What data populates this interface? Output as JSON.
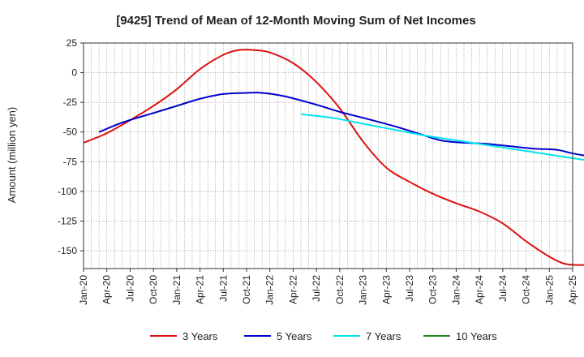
{
  "chart_data": {
    "type": "line",
    "title": "[9425]  Trend of Mean of 12-Month Moving Sum of Net Incomes",
    "xlabel": "",
    "ylabel": "Amount (million yen)",
    "ylim": [
      -165,
      25
    ],
    "yticks": [
      25,
      0,
      -25,
      -50,
      -75,
      -100,
      -125,
      -150
    ],
    "xticks": [
      "Jan-20",
      "Apr-20",
      "Jul-20",
      "Oct-20",
      "Jan-21",
      "Apr-21",
      "Jul-21",
      "Oct-21",
      "Jan-22",
      "Apr-22",
      "Jul-22",
      "Oct-22",
      "Jan-23",
      "Apr-23",
      "Jul-23",
      "Oct-23",
      "Jan-24",
      "Apr-24",
      "Jul-24",
      "Oct-24",
      "Jan-25",
      "Apr-25"
    ],
    "grid": true,
    "legend_position": "bottom",
    "series": [
      {
        "name": "3 Years",
        "color": "#dd1111",
        "points": [
          [
            0,
            -59
          ],
          [
            3,
            -51
          ],
          [
            6,
            -40
          ],
          [
            9,
            -28
          ],
          [
            12,
            -14
          ],
          [
            15,
            3
          ],
          [
            18,
            15
          ],
          [
            20,
            19
          ],
          [
            22,
            19
          ],
          [
            24,
            17
          ],
          [
            27,
            8
          ],
          [
            30,
            -8
          ],
          [
            33,
            -30
          ],
          [
            36,
            -58
          ],
          [
            39,
            -80
          ],
          [
            42,
            -92
          ],
          [
            45,
            -102
          ],
          [
            48,
            -110
          ],
          [
            51,
            -117
          ],
          [
            54,
            -127
          ],
          [
            57,
            -142
          ],
          [
            60,
            -155
          ],
          [
            62,
            -161
          ],
          [
            64,
            -162
          ],
          [
            66,
            -161
          ],
          [
            67,
            -160
          ]
        ]
      },
      {
        "name": "5 Years",
        "color": "#0000cc",
        "points": [
          [
            2,
            -50
          ],
          [
            5,
            -42
          ],
          [
            9,
            -34
          ],
          [
            12,
            -28
          ],
          [
            15,
            -22
          ],
          [
            18,
            -18
          ],
          [
            21,
            -17
          ],
          [
            23,
            -17
          ],
          [
            26,
            -20
          ],
          [
            30,
            -27
          ],
          [
            33,
            -33
          ],
          [
            36,
            -38
          ],
          [
            40,
            -45
          ],
          [
            43,
            -51
          ],
          [
            46,
            -57
          ],
          [
            49,
            -59
          ],
          [
            52,
            -60
          ],
          [
            55,
            -62
          ],
          [
            58,
            -64
          ],
          [
            61,
            -65
          ],
          [
            63,
            -68
          ],
          [
            67,
            -73
          ],
          [
            70,
            -79
          ],
          [
            74,
            -84
          ],
          [
            76,
            -88
          ]
        ]
      },
      {
        "name": "7 Years",
        "color": "#00e5ee",
        "points": [
          [
            28,
            -35
          ],
          [
            32,
            -38
          ],
          [
            36,
            -43
          ],
          [
            40,
            -48
          ],
          [
            44,
            -53
          ],
          [
            48,
            -57
          ],
          [
            52,
            -61
          ],
          [
            56,
            -65
          ],
          [
            60,
            -69
          ],
          [
            64,
            -73
          ],
          [
            68,
            -76
          ],
          [
            72,
            -76
          ],
          [
            75,
            -74
          ],
          [
            76,
            -73
          ]
        ]
      },
      {
        "name": "10 Years",
        "color": "#228b22",
        "points": []
      }
    ]
  }
}
